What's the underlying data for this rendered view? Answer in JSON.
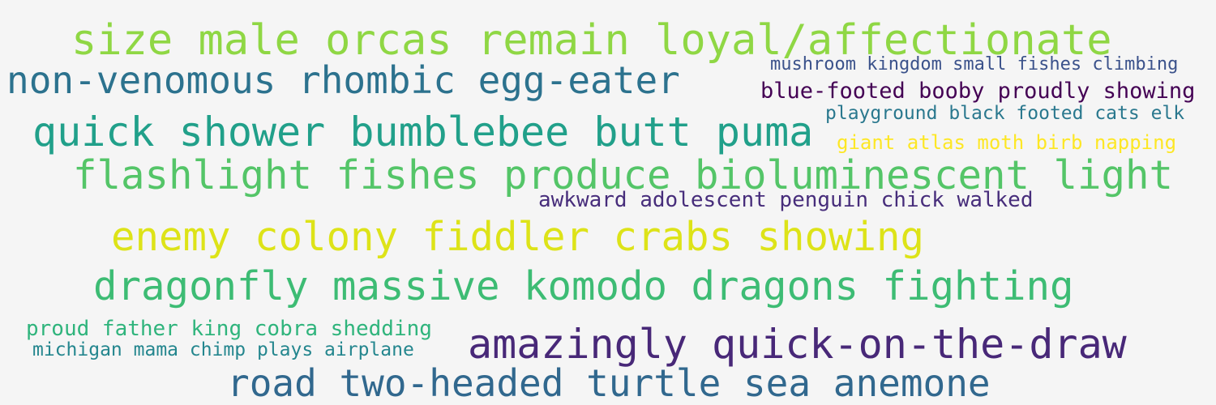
{
  "words": [
    {
      "text": "size male orcas remain loyal/affectionate",
      "color": "#8fd744"
    },
    {
      "text": "mushroom kingdom small fishes climbing",
      "color": "#3b528b"
    },
    {
      "text": "non-venomous rhombic egg-eater",
      "color": "#2c728e"
    },
    {
      "text": "blue-footed booby proudly showing",
      "color": "#440154"
    },
    {
      "text": "playground black footed cats elk",
      "color": "#2a788e"
    },
    {
      "text": "quick shower bumblebee butt puma",
      "color": "#21a08a"
    },
    {
      "text": "giant atlas moth birb napping",
      "color": "#fde725"
    },
    {
      "text": "flashlight fishes produce bioluminescent light",
      "color": "#54c568"
    },
    {
      "text": "awkward adolescent penguin chick walked",
      "color": "#472d7b"
    },
    {
      "text": "enemy colony fiddler crabs showing",
      "color": "#dde318"
    },
    {
      "text": "dragonfly massive komodo dragons fighting",
      "color": "#3dbc74"
    },
    {
      "text": "proud father king cobra shedding",
      "color": "#2fb47c"
    },
    {
      "text": "amazingly quick-on-the-draw",
      "color": "#482878"
    },
    {
      "text": "michigan mama chimp plays airplane",
      "color": "#24868e"
    },
    {
      "text": "road two-headed turtle sea anemone",
      "color": "#31688e"
    }
  ]
}
